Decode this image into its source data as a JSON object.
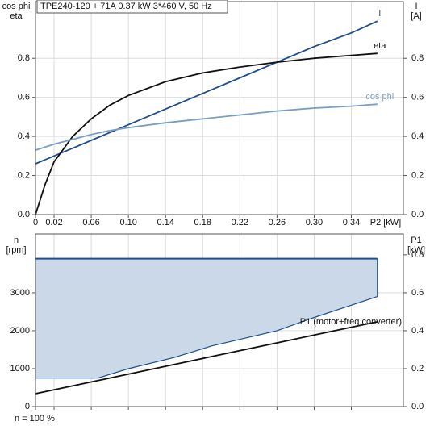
{
  "chart_data": [
    {
      "type": "line",
      "title": "TPE240-120 + 71A   0.37 kW   3*460 V, 50 Hz",
      "ylabel": [
        "cos phi",
        "eta"
      ],
      "y2label": [
        "I",
        "[A]"
      ],
      "xlabel": "P2 [kW]",
      "x": [
        0,
        0.01,
        0.02,
        0.04,
        0.06,
        0.08,
        0.1,
        0.14,
        0.18,
        0.22,
        0.26,
        0.3,
        0.34,
        0.368
      ],
      "series": [
        {
          "name": "I",
          "color": "#1f4e8c",
          "axis": "y2",
          "values": [
            0.26,
            0.28,
            0.3,
            0.34,
            0.38,
            0.42,
            0.46,
            0.54,
            0.62,
            0.7,
            0.78,
            0.86,
            0.93,
            0.99
          ]
        },
        {
          "name": "eta",
          "color": "#111111",
          "values": [
            0,
            0.15,
            0.27,
            0.4,
            0.49,
            0.56,
            0.61,
            0.68,
            0.725,
            0.755,
            0.78,
            0.8,
            0.815,
            0.825
          ]
        },
        {
          "name": "cos phi",
          "color": "#7b9dc2",
          "values": [
            0.33,
            0.345,
            0.36,
            0.385,
            0.41,
            0.43,
            0.445,
            0.47,
            0.49,
            0.51,
            0.53,
            0.545,
            0.555,
            0.565
          ]
        }
      ],
      "xlim": [
        0,
        0.396
      ],
      "xticks": [
        0,
        0.02,
        0.06,
        {
          "value": 0.1,
          "label": "0.10"
        },
        0.14,
        0.18,
        0.22,
        {
          "value": 0.3,
          "label": "0.30"
        },
        0.26,
        0.34
      ],
      "ylim": [
        0,
        1.09
      ],
      "yticks": [
        {
          "value": 0,
          "label": "0.0"
        },
        {
          "value": 0.2,
          "label": "0.2"
        },
        {
          "value": 0.4,
          "label": "0.4"
        },
        {
          "value": 0.6,
          "label": "0.6"
        },
        {
          "value": 0.8,
          "label": "0.8"
        }
      ],
      "y2lim": [
        0,
        1.09
      ],
      "y2ticks": [
        {
          "value": 0,
          "label": "0.0"
        },
        {
          "value": 0.2,
          "label": "0.2"
        },
        {
          "value": 0.4,
          "label": "0.4"
        },
        {
          "value": 0.6,
          "label": "0.6"
        },
        {
          "value": 0.8,
          "label": "0.8"
        }
      ],
      "grid": true,
      "xtick_labels": true
    },
    {
      "type": "area",
      "ylabel": [
        "n",
        "[rpm]"
      ],
      "y2label": [
        "P1",
        "[kW]"
      ],
      "annotation": "n = 100 %",
      "x": [
        0,
        0.067,
        0.1,
        0.15,
        0.19,
        0.26,
        0.3,
        0.368
      ],
      "fill": "#cad8e7",
      "series": [
        {
          "color": "#1f4e8c",
          "values": [
            3900,
            3900,
            3900,
            3900,
            3900,
            3900,
            3900,
            3900
          ]
        },
        {
          "color": "#1f4e8c",
          "values": [
            750,
            750,
            1000,
            1300,
            1600,
            2000,
            2350,
            2900
          ]
        },
        {
          "name": "P1 (motor+freq.converter)",
          "color": "#111111",
          "axis": "y2",
          "values": [
            0.068,
            0.137,
            0.171,
            0.223,
            0.264,
            0.336,
            0.377,
            0.447
          ]
        }
      ],
      "xlim": [
        0,
        0.396
      ],
      "xticks": [
        0,
        0.02,
        0.06,
        0.1,
        0.14,
        0.18,
        0.22,
        0.26,
        0.3,
        0.34
      ],
      "ylim": [
        0,
        4550
      ],
      "yticks": [
        0,
        1000,
        2000,
        3000
      ],
      "y2lim": [
        0,
        0.91
      ],
      "y2ticks": [
        {
          "value": 0,
          "label": "0.0"
        },
        {
          "value": 0.2,
          "label": "0.2"
        },
        {
          "value": 0.4,
          "label": "0.4"
        },
        {
          "value": 0.6,
          "label": "0.6"
        },
        {
          "value": 0.8,
          "label": "0.8"
        }
      ],
      "grid": true,
      "xtick_labels": false
    }
  ]
}
